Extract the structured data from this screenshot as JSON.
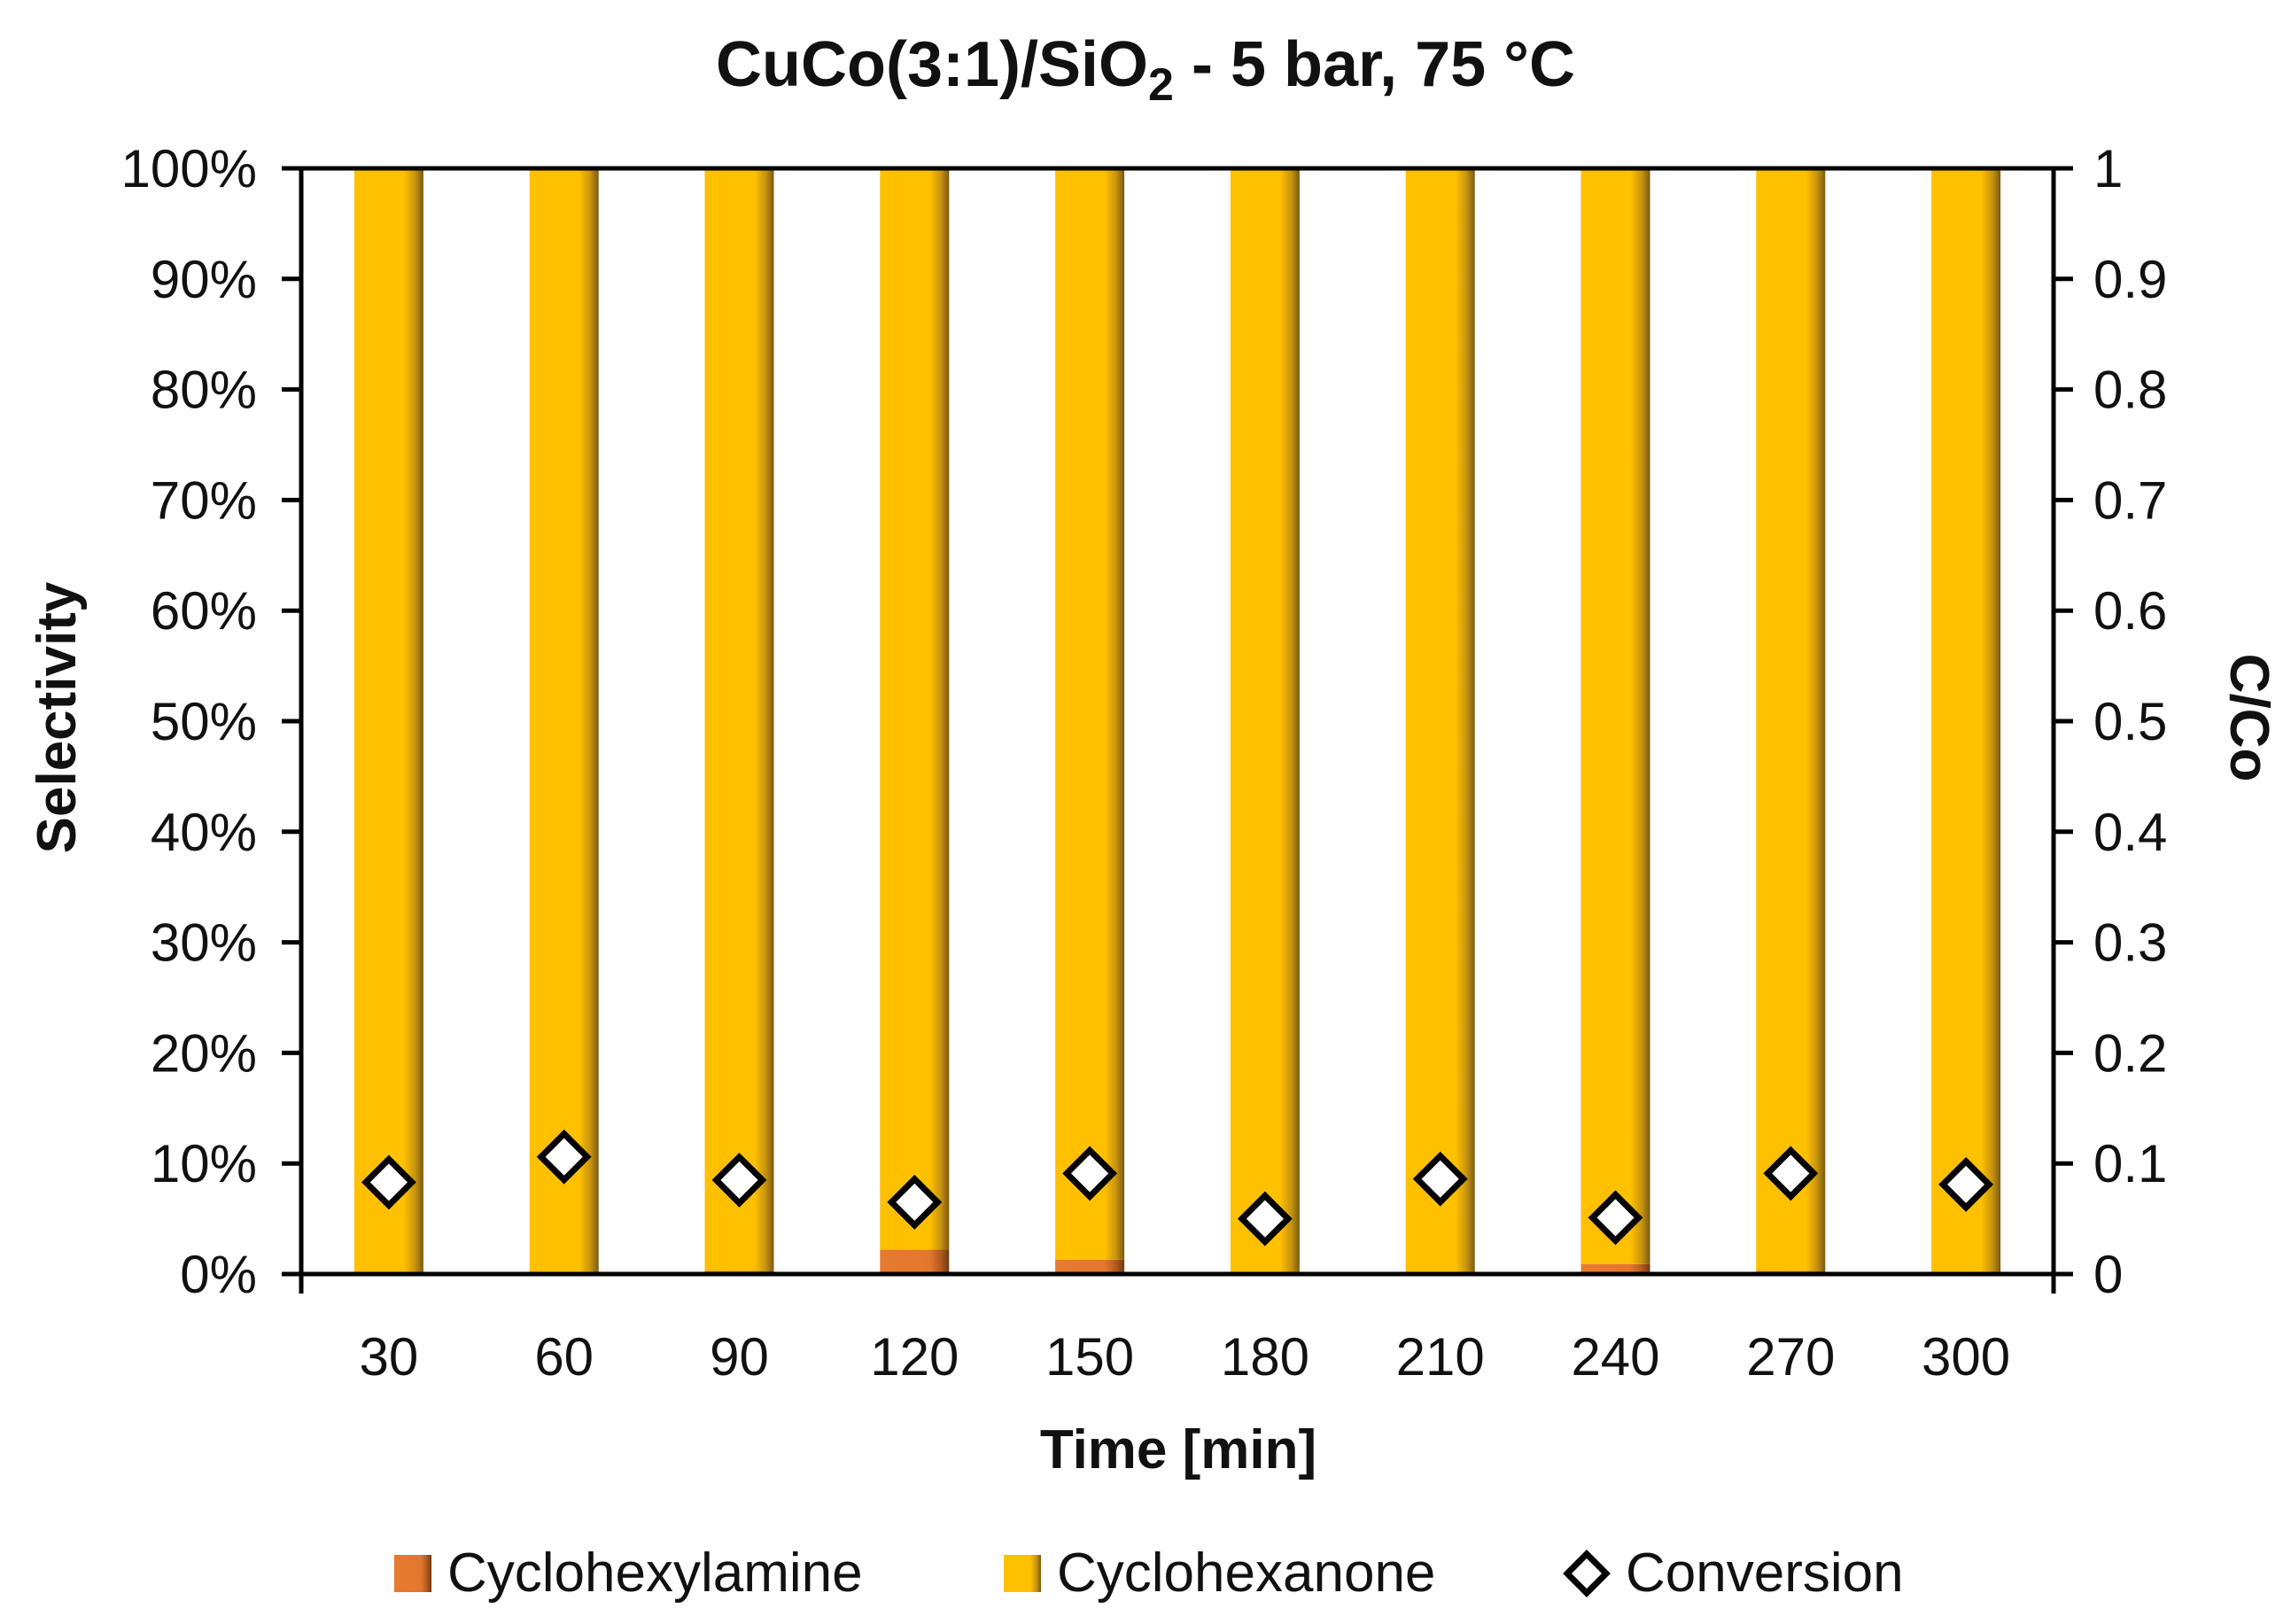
{
  "chart_data": {
    "type": "bar",
    "title": {
      "main": "CuCo(3:1)/SiO",
      "sub": "2",
      "rest": " - 5 bar, 75 °C"
    },
    "xlabel": "Time [min]",
    "ylabel": "Selectivity",
    "y2label": "C/Co",
    "categories": [
      "30",
      "60",
      "90",
      "120",
      "150",
      "180",
      "210",
      "240",
      "270",
      "300"
    ],
    "ylim": [
      0,
      100
    ],
    "y_ticks": [
      "0%",
      "10%",
      "20%",
      "30%",
      "40%",
      "50%",
      "60%",
      "70%",
      "80%",
      "90%",
      "100%"
    ],
    "y2lim": [
      0,
      1
    ],
    "y2_ticks": [
      "0",
      "0.1",
      "0.2",
      "0.3",
      "0.4",
      "0.5",
      "0.6",
      "0.7",
      "0.8",
      "0.9",
      "1"
    ],
    "series": [
      {
        "name": "Cyclohexylamine",
        "kind": "stacked-bar",
        "axis": "left",
        "color": "#E2772E",
        "values": [
          0,
          0,
          0.3,
          2.2,
          1.3,
          0,
          0,
          0.9,
          0.3,
          0.2
        ]
      },
      {
        "name": "Cyclohexanone",
        "kind": "stacked-bar",
        "axis": "left",
        "color": "#FFC000",
        "values": [
          100,
          100,
          99.7,
          97.8,
          98.7,
          100,
          100,
          99.1,
          99.7,
          99.8
        ]
      },
      {
        "name": "Conversion",
        "kind": "marker",
        "marker": "diamond",
        "axis": "right",
        "color": "#000000",
        "values": [
          0.083,
          0.106,
          0.085,
          0.065,
          0.091,
          0.05,
          0.086,
          0.051,
          0.091,
          0.081
        ]
      }
    ],
    "legend": {
      "position": "bottom",
      "items": [
        "Cyclohexylamine",
        "Cyclohexanone",
        "Conversion"
      ]
    }
  }
}
